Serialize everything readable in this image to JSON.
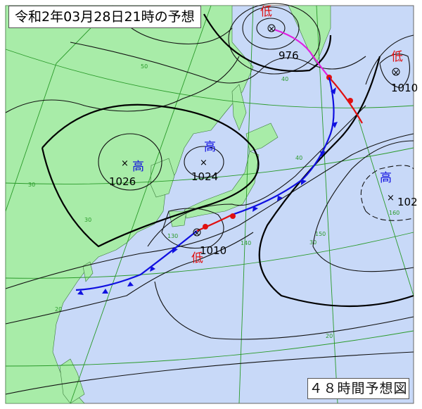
{
  "title": "令和2年03月28日21時の予想",
  "forecast_label": "４８時間予想図",
  "colors": {
    "land": "#a8eca8",
    "sea": "#c8d9f8",
    "grid": "#2a9a2a",
    "warm_front": "#e01010",
    "cold_front": "#1010e0",
    "occluded_front": "#e020e0",
    "high_label": "#1010e0",
    "low_label": "#e01010"
  },
  "pressure_systems": [
    {
      "type_label": "高",
      "pressure": "1026"
    },
    {
      "type_label": "高",
      "pressure": "1024"
    },
    {
      "type_label": "高",
      "pressure": "102"
    },
    {
      "type_label": "低",
      "pressure": "976"
    },
    {
      "type_label": "低",
      "pressure": "1010"
    },
    {
      "type_label": "低",
      "pressure": "1010"
    }
  ],
  "grid_labels": {
    "lat50": "50",
    "lat40": "40",
    "lat30": "30",
    "lat20": "20",
    "lat40b": "40",
    "lat30b": "30",
    "lon130": "130",
    "lon140": "140",
    "lon150": "150",
    "lon160": "160",
    "lat30c": "30",
    "lat20b": "20"
  }
}
